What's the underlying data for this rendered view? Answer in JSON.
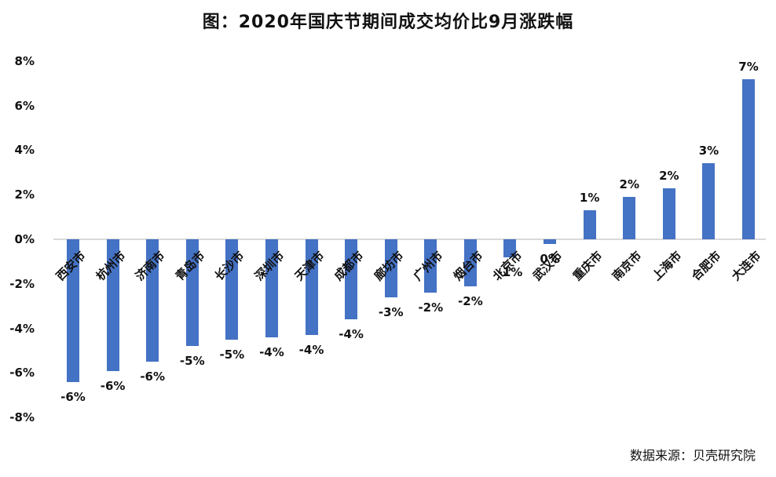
{
  "chart": {
    "title": "图：2020年国庆节期间成交均价比9月涨跌幅",
    "source": "数据来源：贝壳研究院"
  },
  "chart_data": {
    "type": "bar",
    "title": "图：2020年国庆节期间成交均价比9月涨跌幅",
    "xlabel": "",
    "ylabel": "",
    "unit": "%",
    "categories": [
      "西安市",
      "杭州市",
      "济南市",
      "青岛市",
      "长沙市",
      "深圳市",
      "天津市",
      "成都市",
      "廊坊市",
      "广州市",
      "烟台市",
      "北京市",
      "武汉市",
      "重庆市",
      "南京市",
      "上海市",
      "合肥市",
      "大连市"
    ],
    "values": [
      -6.4,
      -5.9,
      -5.5,
      -4.8,
      -4.5,
      -4.4,
      -4.3,
      -3.6,
      -2.6,
      -2.4,
      -2.1,
      -0.8,
      -0.2,
      1.3,
      1.9,
      2.3,
      3.4,
      7.2
    ],
    "data_labels": [
      "-6%",
      "-6%",
      "-6%",
      "-5%",
      "-5%",
      "-4%",
      "-4%",
      "-4%",
      "-3%",
      "-2%",
      "-2%",
      "-1%",
      "0%",
      "1%",
      "2%",
      "2%",
      "3%",
      "7%"
    ],
    "ylim": [
      -8,
      8
    ],
    "ytick_labels": [
      "8%",
      "6%",
      "4%",
      "2%",
      "0%",
      "-2%",
      "-4%",
      "-6%",
      "-8%"
    ],
    "ytick_values": [
      8,
      6,
      4,
      2,
      0,
      -2,
      -4,
      -6,
      -8
    ],
    "grid": false,
    "legend": false,
    "bar_color": "#4472C4",
    "axis_line_color": "#D9D9D9",
    "source": "数据来源：贝壳研究院"
  }
}
